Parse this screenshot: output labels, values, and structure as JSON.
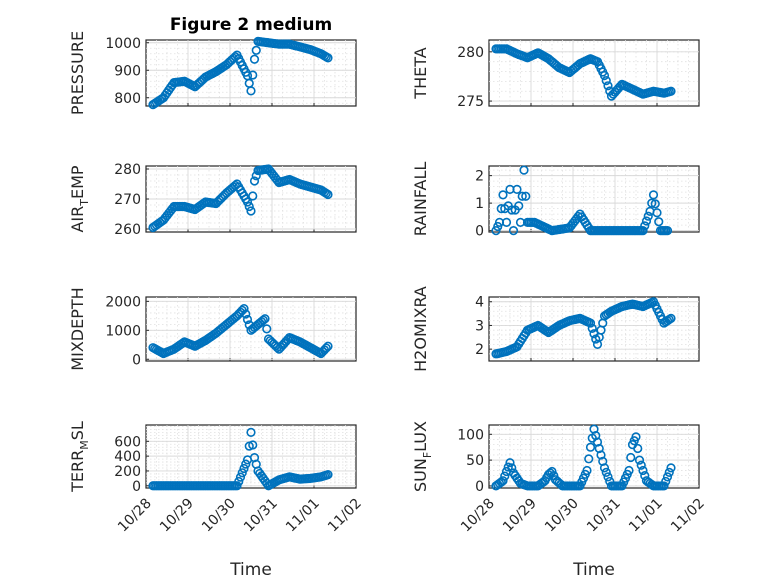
{
  "figure": {
    "title": "Figure 2 medium",
    "marker_color": "#0072BD"
  },
  "chart_data": [
    {
      "type": "scatter",
      "ylabel": "PRESSURE",
      "yticks": [
        "800",
        "900",
        "1000"
      ],
      "ylim": [
        770,
        1010
      ],
      "ytick_values": [
        800,
        900,
        1000
      ],
      "x": [
        "10/28 04:00",
        "10/28 10:00",
        "10/28 16:00",
        "10/28 22:00",
        "10/29 04:00",
        "10/29 10:00",
        "10/29 16:00",
        "10/29 22:00",
        "10/30 04:00",
        "10/30 10:00",
        "10/30 12:00",
        "10/30 14:00",
        "10/30 16:00",
        "10/30 22:00",
        "10/31 04:00",
        "10/31 10:00",
        "10/31 16:00",
        "10/31 22:00",
        "11/01 04:00",
        "11/01 08:00"
      ],
      "values": [
        775,
        800,
        855,
        860,
        840,
        875,
        895,
        920,
        955,
        880,
        825,
        940,
        1005,
        1000,
        995,
        995,
        985,
        975,
        960,
        945
      ]
    },
    {
      "type": "scatter",
      "ylabel": "THETA",
      "yticks": [
        "275",
        "280"
      ],
      "ylim": [
        274.5,
        281.2
      ],
      "ytick_values": [
        275,
        280
      ],
      "x": [
        "10/28 04:00",
        "10/28 10:00",
        "10/28 16:00",
        "10/28 22:00",
        "10/29 04:00",
        "10/29 10:00",
        "10/29 16:00",
        "10/29 22:00",
        "10/30 04:00",
        "10/30 10:00",
        "10/30 14:00",
        "10/30 18:00",
        "10/30 22:00",
        "10/31 04:00",
        "10/31 10:00",
        "10/31 16:00",
        "10/31 22:00",
        "11/01 04:00",
        "11/01 08:00"
      ],
      "values": [
        280.3,
        280.3,
        279.8,
        279.4,
        279.9,
        279.3,
        278.4,
        277.9,
        278.8,
        279.3,
        279.0,
        277.6,
        275.5,
        276.7,
        276.2,
        275.7,
        276.0,
        275.8,
        276.0
      ]
    },
    {
      "type": "scatter",
      "ylabel": "AIR_TEMP",
      "yticks": [
        "260",
        "270",
        "280"
      ],
      "ylim": [
        259,
        281
      ],
      "ytick_values": [
        260,
        270,
        280
      ],
      "x": [
        "10/28 04:00",
        "10/28 10:00",
        "10/28 16:00",
        "10/28 22:00",
        "10/29 04:00",
        "10/29 10:00",
        "10/29 16:00",
        "10/29 22:00",
        "10/30 04:00",
        "10/30 10:00",
        "10/30 12:00",
        "10/30 14:00",
        "10/30 16:00",
        "10/30 22:00",
        "10/31 04:00",
        "10/31 10:00",
        "10/31 16:00",
        "10/31 22:00",
        "11/01 04:00",
        "11/01 08:00"
      ],
      "values": [
        260.5,
        263,
        267.5,
        267.5,
        266.5,
        269,
        268.5,
        272,
        275,
        269,
        266,
        276,
        279.5,
        280,
        275.5,
        276.5,
        275,
        274,
        273,
        271.5
      ]
    },
    {
      "type": "scatter",
      "ylabel": "RAINFALL",
      "yticks": [
        "0",
        "1",
        "2"
      ],
      "ylim": [
        -0.05,
        2.35
      ],
      "ytick_values": [
        0,
        1,
        2
      ],
      "x": [
        "10/28 04:00",
        "10/28 06:00",
        "10/28 08:00",
        "10/28 10:00",
        "10/28 12:00",
        "10/28 14:00",
        "10/28 16:00",
        "10/28 18:00",
        "10/28 20:00",
        "10/28 22:00",
        "10/29 02:00",
        "10/29 12:00",
        "10/29 22:00",
        "10/30 04:00",
        "10/30 10:00",
        "10/30 16:00",
        "10/30 22:00",
        "10/31 04:00",
        "10/31 10:00",
        "10/31 16:00",
        "10/31 20:00",
        "10/31 22:00",
        "11/01 02:00",
        "11/01 06:00"
      ],
      "values": [
        0,
        0.3,
        1.3,
        0.3,
        1.5,
        0,
        1.5,
        0.3,
        2.2,
        0.3,
        0.3,
        0,
        0.1,
        0.6,
        0,
        0,
        0,
        0,
        0,
        0,
        0.7,
        1.3,
        0,
        0
      ]
    },
    {
      "type": "scatter",
      "ylabel": "MIXDEPTH",
      "yticks": [
        "0",
        "1000",
        "2000"
      ],
      "ylim": [
        -60,
        2150
      ],
      "ytick_values": [
        0,
        1000,
        2000
      ],
      "x": [
        "10/28 04:00",
        "10/28 10:00",
        "10/28 16:00",
        "10/28 22:00",
        "10/29 04:00",
        "10/29 10:00",
        "10/29 16:00",
        "10/29 22:00",
        "10/30 04:00",
        "10/30 08:00",
        "10/30 12:00",
        "10/30 16:00",
        "10/30 20:00",
        "10/30 22:00",
        "10/31 04:00",
        "10/31 10:00",
        "10/31 16:00",
        "10/31 22:00",
        "11/01 04:00",
        "11/01 08:00"
      ],
      "values": [
        400,
        200,
        350,
        600,
        450,
        650,
        900,
        1200,
        1500,
        1750,
        1000,
        1200,
        1400,
        700,
        350,
        750,
        600,
        400,
        200,
        450
      ]
    },
    {
      "type": "scatter",
      "ylabel": "H2OMIXRA",
      "yticks": [
        "2",
        "3",
        "4"
      ],
      "ylim": [
        1.5,
        4.2
      ],
      "ytick_values": [
        2,
        3,
        4
      ],
      "x": [
        "10/28 04:00",
        "10/28 10:00",
        "10/28 16:00",
        "10/28 22:00",
        "10/29 04:00",
        "10/29 10:00",
        "10/29 16:00",
        "10/29 22:00",
        "10/30 04:00",
        "10/30 10:00",
        "10/30 14:00",
        "10/30 18:00",
        "10/30 22:00",
        "10/31 04:00",
        "10/31 10:00",
        "10/31 16:00",
        "10/31 22:00",
        "11/01 04:00",
        "11/01 08:00"
      ],
      "values": [
        1.8,
        1.9,
        2.1,
        2.8,
        3.0,
        2.7,
        3.0,
        3.2,
        3.3,
        3.1,
        2.2,
        3.4,
        3.6,
        3.8,
        3.9,
        3.8,
        4.0,
        3.1,
        3.3
      ]
    },
    {
      "type": "scatter",
      "ylabel": "TERR_MSL",
      "yticks": [
        "0",
        "200",
        "400",
        "600"
      ],
      "ylim": [
        -30,
        820
      ],
      "ytick_values": [
        0,
        200,
        400,
        600
      ],
      "x": [
        "10/28 04:00",
        "10/28 16:00",
        "10/29 04:00",
        "10/29 16:00",
        "10/30 04:00",
        "10/30 10:00",
        "10/30 12:00",
        "10/30 14:00",
        "10/30 16:00",
        "10/30 22:00",
        "10/31 04:00",
        "10/31 10:00",
        "10/31 16:00",
        "10/31 22:00",
        "11/01 04:00",
        "11/01 08:00"
      ],
      "values": [
        0,
        0,
        0,
        0,
        0,
        350,
        720,
        380,
        200,
        0,
        80,
        120,
        90,
        100,
        120,
        150
      ]
    },
    {
      "type": "scatter",
      "ylabel": "SUN_FLUX",
      "yticks": [
        "0",
        "50",
        "100"
      ],
      "ylim": [
        -4,
        118
      ],
      "ytick_values": [
        0,
        50,
        100
      ],
      "x": [
        "10/28 04:00",
        "10/28 08:00",
        "10/28 10:00",
        "10/28 12:00",
        "10/28 14:00",
        "10/28 18:00",
        "10/28 22:00",
        "10/29 04:00",
        "10/29 08:00",
        "10/29 10:00",
        "10/29 12:00",
        "10/29 14:00",
        "10/29 18:00",
        "10/29 22:00",
        "10/30 04:00",
        "10/30 08:00",
        "10/30 10:00",
        "10/30 12:00",
        "10/30 14:00",
        "10/30 18:00",
        "10/30 22:00",
        "10/31 04:00",
        "10/31 08:00",
        "10/31 10:00",
        "10/31 12:00",
        "10/31 14:00",
        "10/31 18:00",
        "10/31 22:00",
        "11/01 04:00",
        "11/01 08:00"
      ],
      "values": [
        0,
        10,
        28,
        45,
        25,
        5,
        0,
        0,
        10,
        22,
        28,
        12,
        0,
        0,
        0,
        30,
        75,
        110,
        85,
        35,
        0,
        0,
        30,
        80,
        95,
        50,
        10,
        0,
        0,
        35
      ]
    }
  ],
  "x_axis": {
    "label": "Time",
    "xlim": [
      "10/28 00:00",
      "11/02 00:00"
    ],
    "tick_labels": [
      "10/28",
      "10/29",
      "10/30",
      "10/31",
      "11/01",
      "11/02"
    ]
  }
}
